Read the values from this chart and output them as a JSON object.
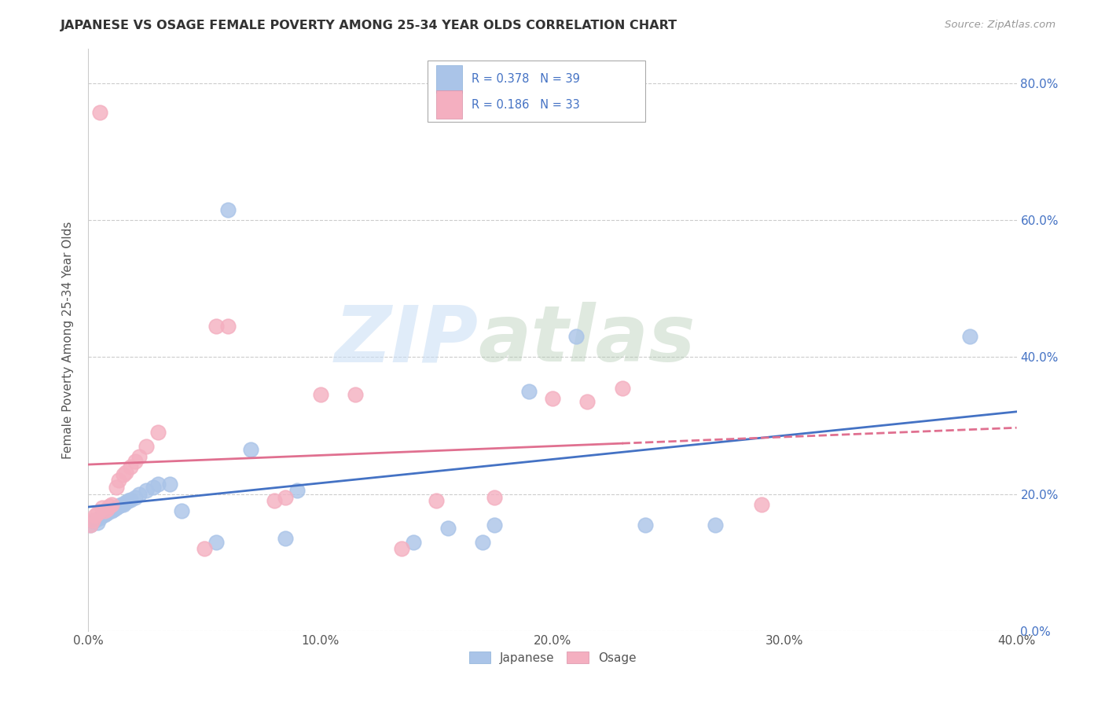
{
  "title": "JAPANESE VS OSAGE FEMALE POVERTY AMONG 25-34 YEAR OLDS CORRELATION CHART",
  "source": "Source: ZipAtlas.com",
  "ylabel": "Female Poverty Among 25-34 Year Olds",
  "xlim": [
    0.0,
    0.4
  ],
  "ylim": [
    0.0,
    0.85
  ],
  "R_japanese": 0.378,
  "N_japanese": 39,
  "R_osage": 0.186,
  "N_osage": 33,
  "japanese_color": "#aac4e8",
  "osage_color": "#f4afc0",
  "japanese_line_color": "#4472c4",
  "osage_line_color": "#e07090",
  "watermark_zip": "ZIP",
  "watermark_atlas": "atlas",
  "japanese_x": [
    0.001,
    0.002,
    0.003,
    0.004,
    0.005,
    0.006,
    0.007,
    0.008,
    0.009,
    0.01,
    0.011,
    0.012,
    0.013,
    0.014,
    0.015,
    0.016,
    0.017,
    0.018,
    0.02,
    0.022,
    0.025,
    0.028,
    0.03,
    0.035,
    0.04,
    0.055,
    0.06,
    0.07,
    0.085,
    0.09,
    0.14,
    0.155,
    0.17,
    0.175,
    0.19,
    0.21,
    0.24,
    0.27,
    0.38
  ],
  "japanese_y": [
    0.155,
    0.16,
    0.162,
    0.158,
    0.165,
    0.168,
    0.17,
    0.172,
    0.175,
    0.175,
    0.178,
    0.18,
    0.182,
    0.185,
    0.185,
    0.188,
    0.19,
    0.192,
    0.195,
    0.2,
    0.205,
    0.21,
    0.215,
    0.215,
    0.175,
    0.13,
    0.615,
    0.265,
    0.135,
    0.205,
    0.13,
    0.15,
    0.13,
    0.155,
    0.35,
    0.43,
    0.155,
    0.155,
    0.43
  ],
  "osage_x": [
    0.001,
    0.002,
    0.003,
    0.004,
    0.005,
    0.006,
    0.007,
    0.008,
    0.009,
    0.01,
    0.012,
    0.013,
    0.015,
    0.016,
    0.018,
    0.02,
    0.022,
    0.025,
    0.03,
    0.05,
    0.055,
    0.06,
    0.08,
    0.085,
    0.1,
    0.115,
    0.135,
    0.15,
    0.175,
    0.2,
    0.215,
    0.23,
    0.29
  ],
  "osage_y": [
    0.155,
    0.162,
    0.168,
    0.172,
    0.758,
    0.18,
    0.175,
    0.178,
    0.182,
    0.185,
    0.21,
    0.22,
    0.228,
    0.232,
    0.24,
    0.248,
    0.255,
    0.27,
    0.29,
    0.12,
    0.445,
    0.445,
    0.19,
    0.195,
    0.345,
    0.345,
    0.12,
    0.19,
    0.195,
    0.34,
    0.335,
    0.355,
    0.185
  ]
}
